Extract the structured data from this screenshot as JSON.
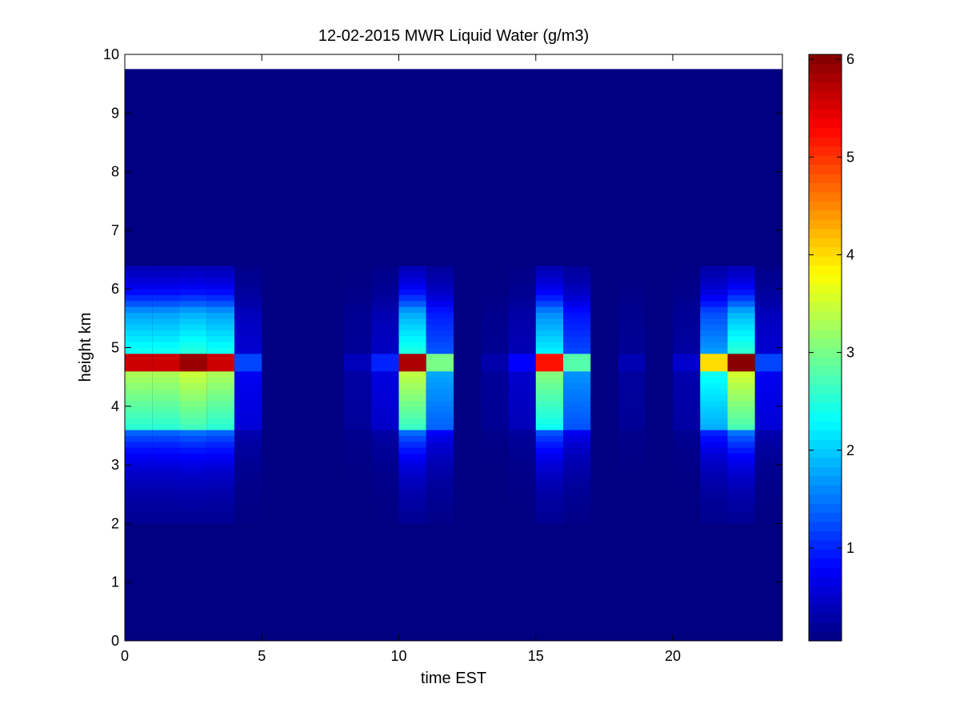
{
  "chart_data": {
    "type": "heatmap",
    "title": "12-02-2015 MWR Liquid Water (g/m3)",
    "xlabel": "time EST",
    "ylabel": "height km",
    "xlim": [
      0,
      24
    ],
    "ylim": [
      0,
      10
    ],
    "xticks": [
      0,
      5,
      10,
      15,
      20
    ],
    "yticks": [
      0,
      1,
      2,
      3,
      4,
      5,
      6,
      7,
      8,
      9,
      10
    ],
    "colorbar": {
      "colormap": "jet",
      "range": [
        0.05,
        6.05
      ],
      "ticks": [
        1,
        2,
        3,
        4,
        5,
        6
      ],
      "location": "right"
    },
    "grid": false,
    "x_bins": [
      0,
      1,
      2,
      3,
      4,
      5,
      6,
      7,
      8,
      9,
      10,
      11,
      12,
      13,
      14,
      15,
      16,
      17,
      18,
      19,
      20,
      21,
      22,
      23
    ],
    "x_bin_width": 1,
    "data_top_km": 9.75,
    "background_value": 0.05,
    "cloud_layer_heights_km": [
      2.0,
      2.1,
      2.2,
      2.3,
      2.4,
      2.5,
      2.6,
      2.7,
      2.8,
      2.9,
      3.0,
      3.1,
      3.2,
      3.3,
      3.4,
      3.5,
      3.6,
      3.7,
      3.8,
      3.9,
      4.0,
      4.1,
      4.2,
      4.3,
      4.4,
      4.5,
      4.6,
      4.7,
      4.8,
      4.9,
      5.0,
      5.1,
      5.2,
      5.3,
      5.4,
      5.5,
      5.6,
      5.7,
      5.8,
      5.9,
      6.0,
      6.1,
      6.2,
      6.3,
      6.4
    ],
    "peak_liquid_water_by_hour": [
      5.6,
      5.6,
      5.9,
      5.6,
      1.2,
      0.05,
      0.05,
      0.05,
      0.4,
      1.0,
      5.8,
      3.0,
      0.05,
      0.3,
      0.8,
      5.2,
      2.8,
      0.05,
      0.35,
      0.05,
      0.5,
      4.0,
      6.0,
      1.2
    ]
  }
}
